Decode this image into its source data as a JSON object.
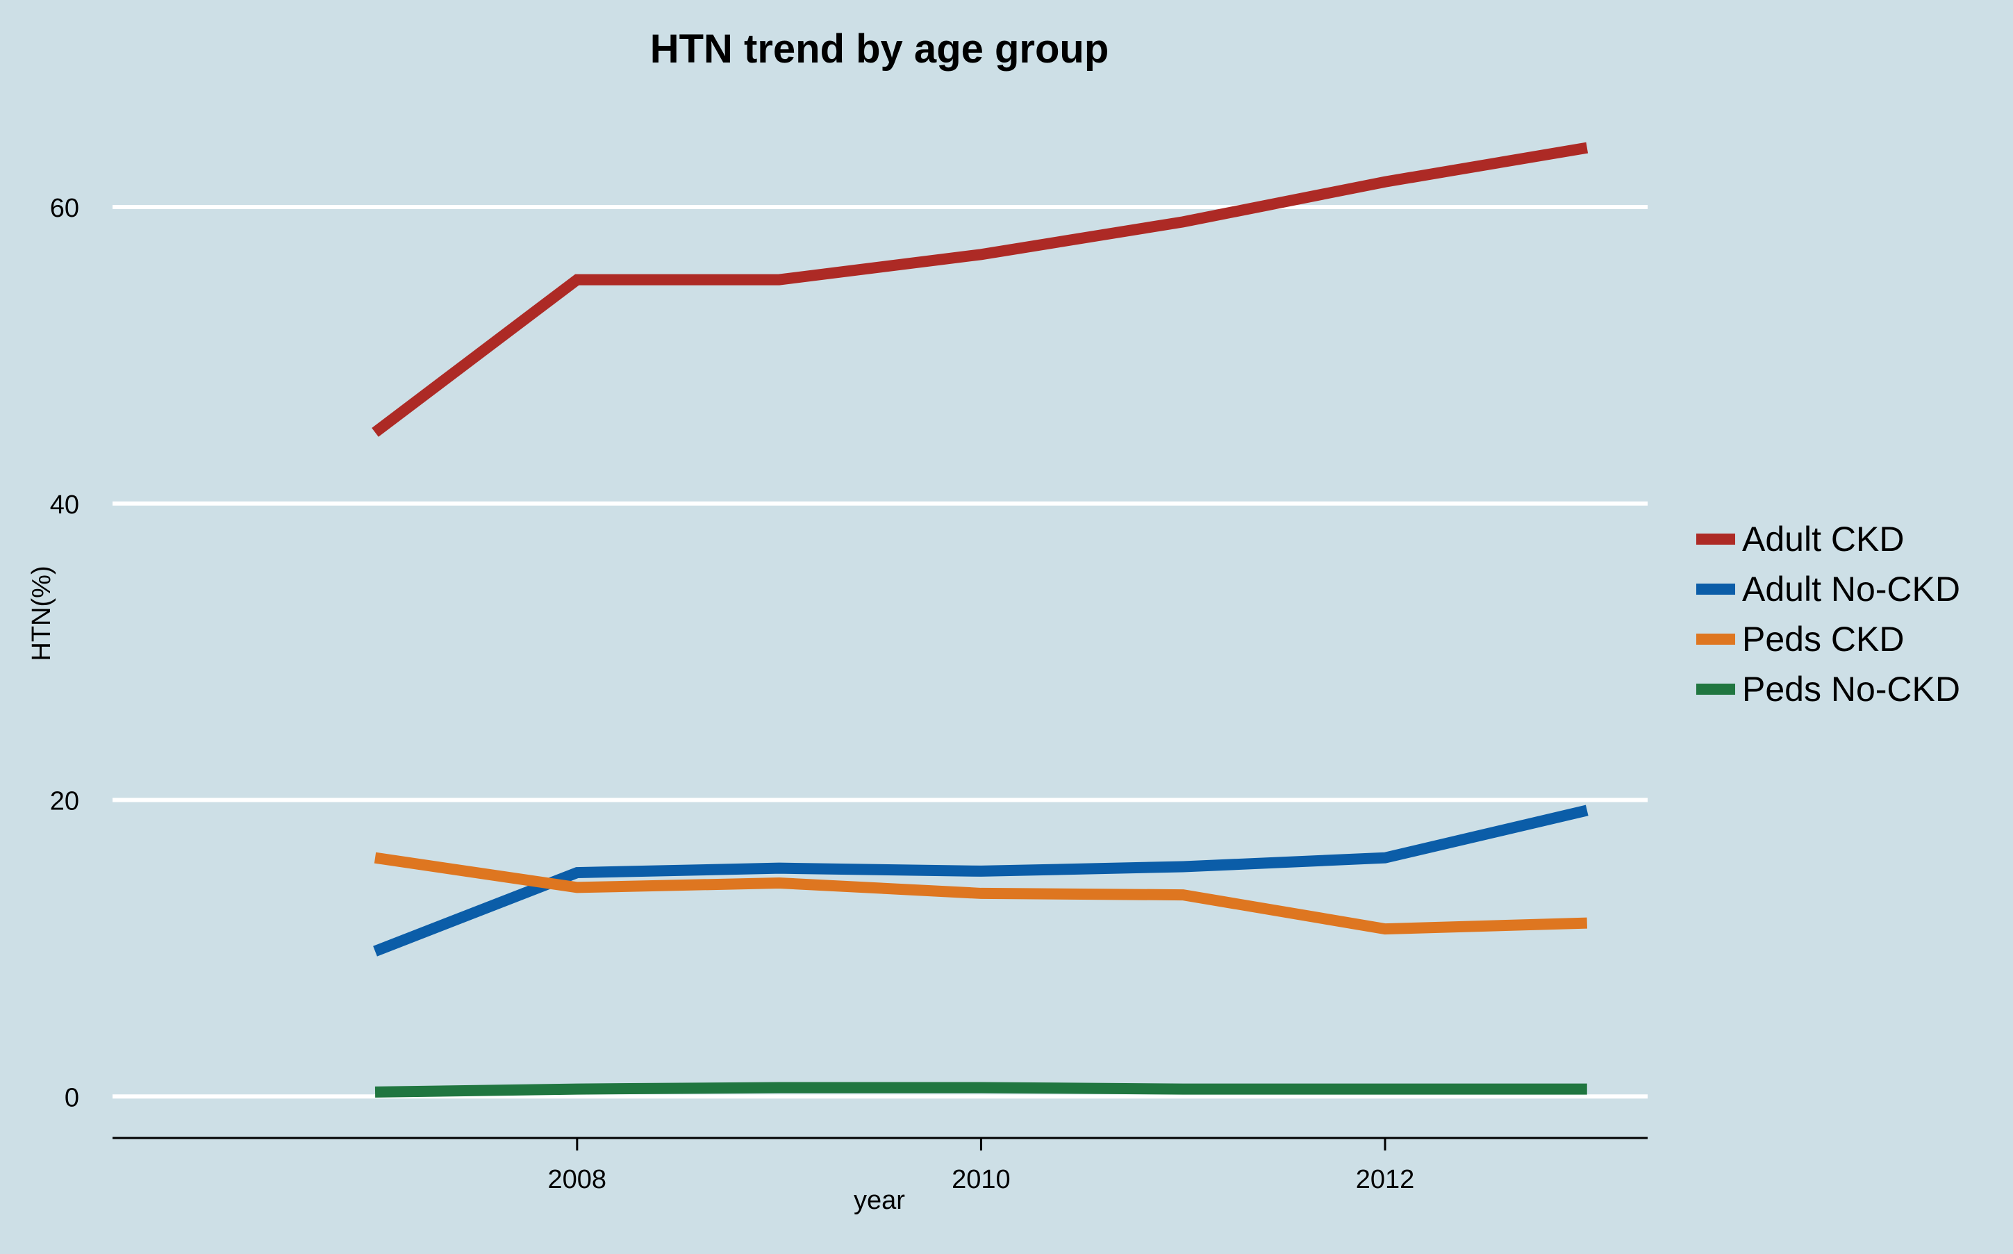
{
  "chart_data": {
    "type": "line",
    "title": "HTN trend by age group",
    "xlabel": "year",
    "ylabel": "HTN(%)",
    "x": [
      2007,
      2008,
      2009,
      2010,
      2011,
      2012,
      2013
    ],
    "xticks": [
      2008,
      2010,
      2012
    ],
    "xlim": [
      2005.7,
      2013.3
    ],
    "yticks": [
      0,
      20,
      40,
      60
    ],
    "ylim": [
      -2.8,
      66
    ],
    "grid": "horizontal",
    "legend_position": "right",
    "series": [
      {
        "name": "Adult CKD",
        "color": "#ad2a25",
        "values": [
          44.8,
          55.1,
          55.1,
          56.8,
          59.0,
          61.7,
          64.0
        ]
      },
      {
        "name": "Adult No-CKD",
        "color": "#0b5da8",
        "values": [
          9.8,
          15.1,
          15.4,
          15.2,
          15.5,
          16.1,
          19.3
        ]
      },
      {
        "name": "Peds CKD",
        "color": "#de7620",
        "values": [
          16.1,
          14.1,
          14.4,
          13.7,
          13.6,
          11.3,
          11.7
        ]
      },
      {
        "name": "Peds No-CKD",
        "color": "#207640",
        "values": [
          0.3,
          0.5,
          0.6,
          0.6,
          0.5,
          0.5,
          0.5
        ]
      }
    ]
  }
}
